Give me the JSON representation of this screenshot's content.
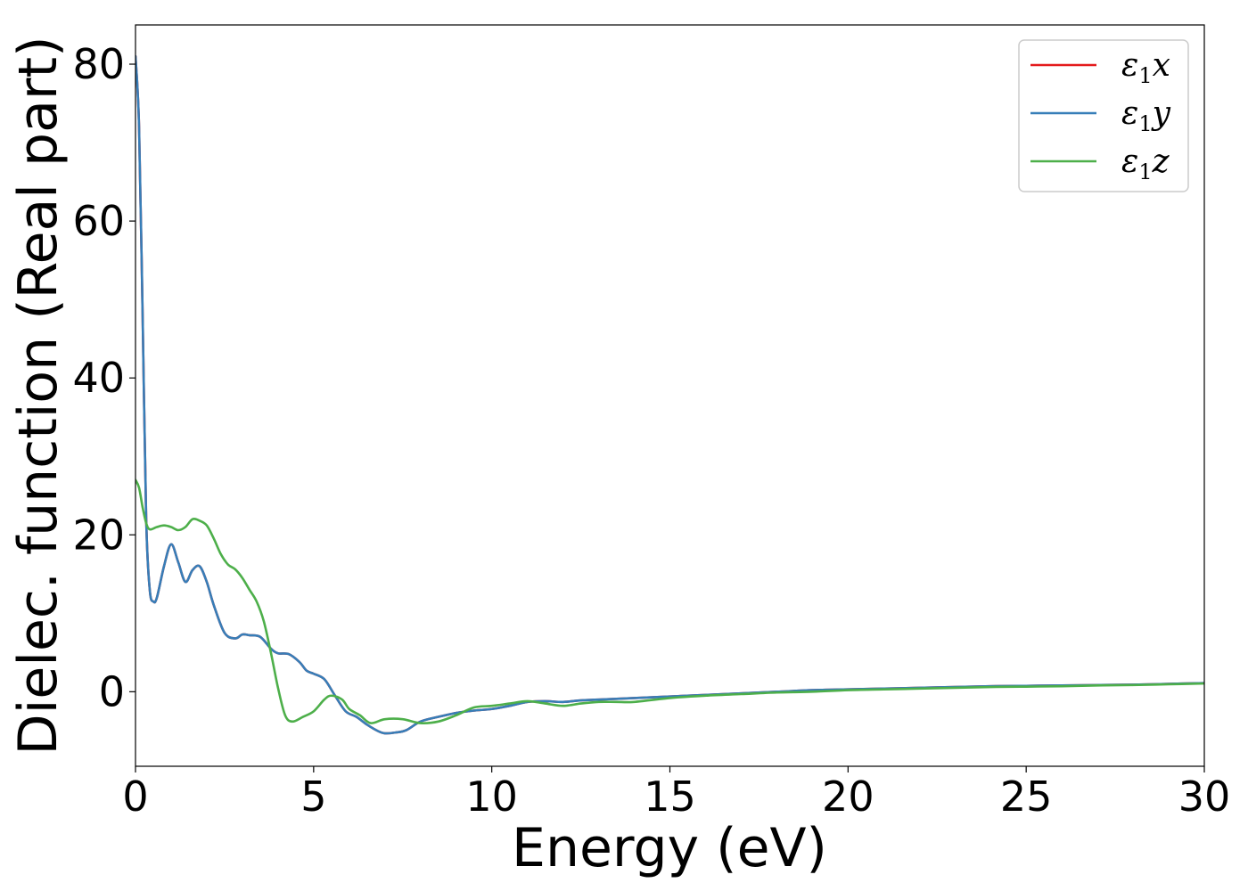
{
  "chart_data": {
    "type": "line",
    "xlabel": "Energy (eV)",
    "ylabel": "Dielec. function (Real part)",
    "xlim": [
      0,
      30
    ],
    "ylim": [
      -9.5,
      85
    ],
    "xticks": [
      0,
      5,
      10,
      15,
      20,
      25,
      30
    ],
    "xtick_labels": [
      "0",
      "5",
      "10",
      "15",
      "20",
      "25",
      "30"
    ],
    "yticks": [
      0,
      20,
      40,
      60,
      80
    ],
    "ytick_labels": [
      "0",
      "20",
      "40",
      "60",
      "80"
    ],
    "grid": false,
    "legend_position": "top-right",
    "series": [
      {
        "name": "x",
        "symbol": "ε",
        "subscript": "1",
        "color": "#e41a1c",
        "x": [
          0,
          0.1,
          0.2,
          0.3,
          0.4,
          0.5,
          0.6,
          0.8,
          1.0,
          1.2,
          1.4,
          1.6,
          1.8,
          2.0,
          2.2,
          2.5,
          2.8,
          3.0,
          3.2,
          3.5,
          3.8,
          4.0,
          4.3,
          4.6,
          4.8,
          5.0,
          5.3,
          5.6,
          5.9,
          6.2,
          6.5,
          6.8,
          7.0,
          7.3,
          7.6,
          8.0,
          8.5,
          9.0,
          9.5,
          10.0,
          10.5,
          11.0,
          11.5,
          12.0,
          12.5,
          13.0,
          14.0,
          15.0,
          16.0,
          17.0,
          18.0,
          19.0,
          20.0,
          21.0,
          22.0,
          23.0,
          24.0,
          25.0,
          26.0,
          27.0,
          28.0,
          29.0,
          30.0
        ],
        "y": [
          81,
          72,
          48,
          22,
          13,
          11.5,
          12,
          16,
          18.8,
          16.5,
          14,
          15.5,
          16,
          14,
          11,
          7.5,
          6.8,
          7.3,
          7.2,
          7,
          5.5,
          4.9,
          4.8,
          3.8,
          2.7,
          2.3,
          1.6,
          -0.5,
          -2.5,
          -3.2,
          -4.2,
          -5,
          -5.3,
          -5.2,
          -4.9,
          -3.8,
          -3.2,
          -2.7,
          -2.4,
          -2.2,
          -1.8,
          -1.3,
          -1.2,
          -1.3,
          -1.1,
          -1,
          -0.8,
          -0.6,
          -0.4,
          -0.2,
          0,
          0.2,
          0.3,
          0.4,
          0.5,
          0.6,
          0.7,
          0.75,
          0.8,
          0.85,
          0.9,
          1.0,
          1.1
        ]
      },
      {
        "name": "y",
        "symbol": "ε",
        "subscript": "1",
        "color": "#377eb8",
        "x": [
          0,
          0.1,
          0.2,
          0.3,
          0.4,
          0.5,
          0.6,
          0.8,
          1.0,
          1.2,
          1.4,
          1.6,
          1.8,
          2.0,
          2.2,
          2.5,
          2.8,
          3.0,
          3.2,
          3.5,
          3.8,
          4.0,
          4.3,
          4.6,
          4.8,
          5.0,
          5.3,
          5.6,
          5.9,
          6.2,
          6.5,
          6.8,
          7.0,
          7.3,
          7.6,
          8.0,
          8.5,
          9.0,
          9.5,
          10.0,
          10.5,
          11.0,
          11.5,
          12.0,
          12.5,
          13.0,
          14.0,
          15.0,
          16.0,
          17.0,
          18.0,
          19.0,
          20.0,
          21.0,
          22.0,
          23.0,
          24.0,
          25.0,
          26.0,
          27.0,
          28.0,
          29.0,
          30.0
        ],
        "y": [
          81,
          72,
          48,
          22,
          13,
          11.5,
          12,
          16,
          18.8,
          16.5,
          14,
          15.5,
          16,
          14,
          11,
          7.5,
          6.8,
          7.3,
          7.2,
          7,
          5.5,
          4.9,
          4.8,
          3.8,
          2.7,
          2.3,
          1.6,
          -0.5,
          -2.5,
          -3.2,
          -4.2,
          -5,
          -5.3,
          -5.2,
          -4.9,
          -3.8,
          -3.2,
          -2.7,
          -2.4,
          -2.2,
          -1.8,
          -1.3,
          -1.2,
          -1.3,
          -1.1,
          -1,
          -0.8,
          -0.6,
          -0.4,
          -0.2,
          0,
          0.2,
          0.3,
          0.4,
          0.5,
          0.6,
          0.7,
          0.75,
          0.8,
          0.85,
          0.9,
          1.0,
          1.1
        ]
      },
      {
        "name": "z",
        "symbol": "ε",
        "subscript": "1",
        "color": "#4daf4a",
        "x": [
          0,
          0.1,
          0.2,
          0.3,
          0.4,
          0.6,
          0.8,
          1.0,
          1.2,
          1.4,
          1.6,
          1.8,
          2.0,
          2.2,
          2.4,
          2.6,
          2.8,
          3.0,
          3.2,
          3.4,
          3.6,
          3.8,
          4.0,
          4.2,
          4.4,
          4.7,
          5.0,
          5.3,
          5.5,
          5.8,
          6.0,
          6.3,
          6.6,
          7.0,
          7.5,
          8.0,
          8.5,
          9.0,
          9.5,
          10.0,
          10.5,
          11.0,
          11.5,
          12.0,
          12.5,
          13.0,
          13.5,
          14.0,
          15.0,
          16.0,
          17.0,
          18.0,
          19.0,
          20.0,
          21.0,
          22.0,
          23.0,
          24.0,
          25.0,
          26.0,
          27.0,
          28.0,
          29.0,
          30.0
        ],
        "y": [
          27,
          26,
          23.5,
          21.5,
          20.7,
          21,
          21.2,
          21,
          20.6,
          21,
          22,
          21.8,
          21.2,
          19.5,
          17.5,
          16.2,
          15.6,
          14.5,
          13,
          11.5,
          9,
          5,
          0.5,
          -3,
          -3.8,
          -3.2,
          -2.5,
          -1,
          -0.5,
          -1,
          -2.2,
          -3,
          -4,
          -3.5,
          -3.5,
          -4,
          -3.8,
          -3,
          -2,
          -1.8,
          -1.5,
          -1.2,
          -1.5,
          -1.8,
          -1.5,
          -1.3,
          -1.3,
          -1.3,
          -0.8,
          -0.5,
          -0.3,
          -0.1,
          0,
          0.2,
          0.3,
          0.4,
          0.5,
          0.6,
          0.65,
          0.7,
          0.8,
          0.85,
          0.95,
          1.05
        ]
      }
    ]
  }
}
